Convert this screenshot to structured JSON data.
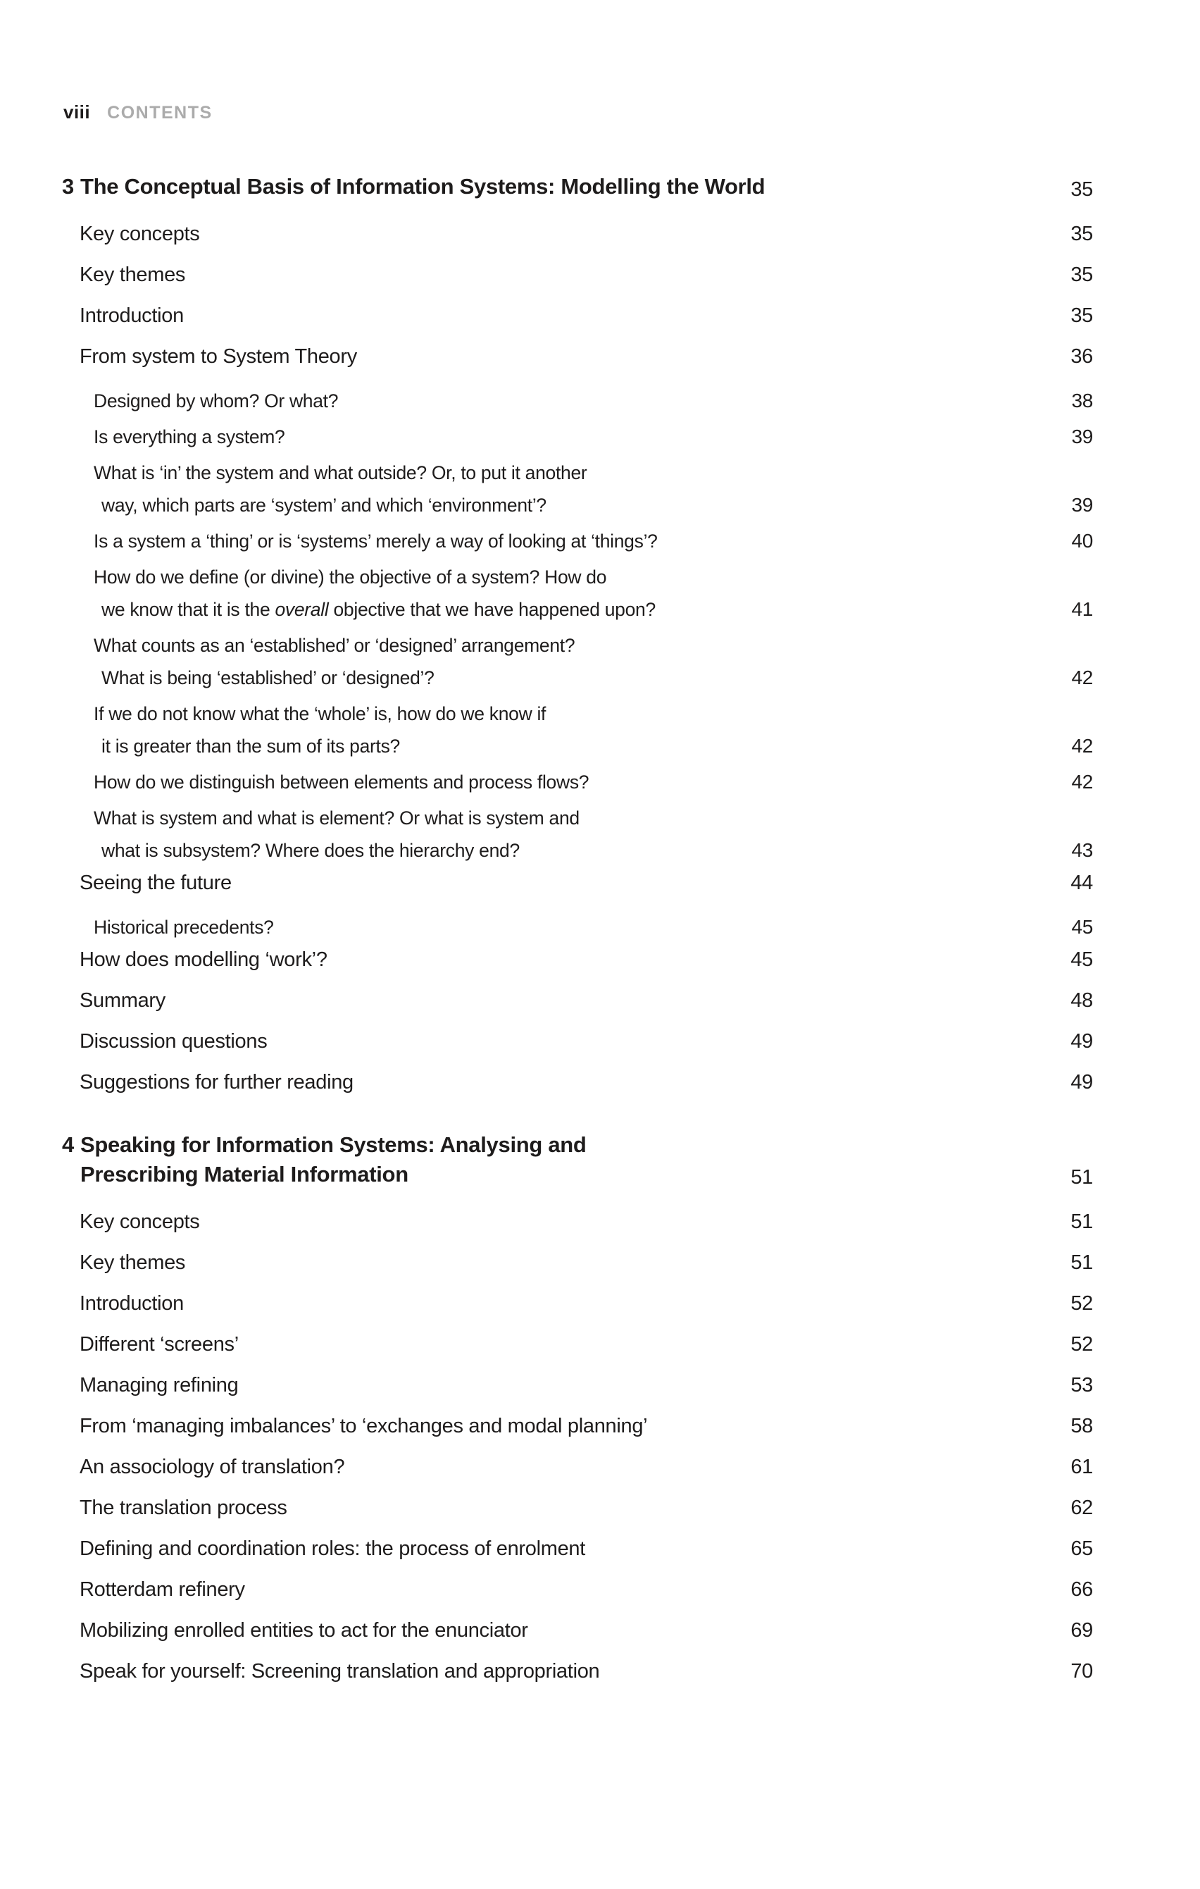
{
  "header": {
    "folio": "viii",
    "running_head": "CONTENTS"
  },
  "chapters": [
    {
      "number": "3",
      "title_lines": [
        "The Conceptual Basis of Information Systems: Modelling the World"
      ],
      "page": "35",
      "entries": [
        {
          "level": 1,
          "lines": [
            "Key concepts"
          ],
          "page": "35"
        },
        {
          "level": 1,
          "lines": [
            "Key themes"
          ],
          "page": "35"
        },
        {
          "level": 1,
          "lines": [
            "Introduction"
          ],
          "page": "35"
        },
        {
          "level": 1,
          "lines": [
            "From system to System Theory"
          ],
          "page": "36"
        },
        {
          "level": 2,
          "lines": [
            "Designed by whom? Or what?"
          ],
          "page": "38"
        },
        {
          "level": 2,
          "lines": [
            "Is everything a system?"
          ],
          "page": "39"
        },
        {
          "level": 2,
          "lines": [
            "What is ‘in’ the system and what outside? Or, to put it another",
            "way, which parts are ‘system’ and which ‘environment’?"
          ],
          "page": "39"
        },
        {
          "level": 2,
          "lines": [
            "Is a system a ‘thing’ or is ‘systems’ merely a way of looking at ‘things’?"
          ],
          "page": "40"
        },
        {
          "level": 2,
          "lines": [
            "How do we define (or divine) the objective of a system? How do",
            [
              {
                "t": "we know that it is the "
              },
              {
                "t": "overall",
                "i": true
              },
              {
                "t": " objective that we have happened upon?"
              }
            ]
          ],
          "page": "41"
        },
        {
          "level": 2,
          "lines": [
            "What counts as an ‘established’ or ‘designed’ arrangement?",
            "What is being ‘established’ or ‘designed’?"
          ],
          "page": "42"
        },
        {
          "level": 2,
          "lines": [
            "If we do not know what the ‘whole’ is, how do we know if",
            "it is greater than the sum of its parts?"
          ],
          "page": "42"
        },
        {
          "level": 2,
          "lines": [
            "How do we distinguish between elements and process flows?"
          ],
          "page": "42"
        },
        {
          "level": 2,
          "lines": [
            "What is system and what is element? Or what is system and",
            "what is subsystem? Where does the hierarchy end?"
          ],
          "page": "43"
        },
        {
          "level": 1,
          "lines": [
            "Seeing the future"
          ],
          "page": "44"
        },
        {
          "level": 2,
          "lines": [
            "Historical precedents?"
          ],
          "page": "45"
        },
        {
          "level": 1,
          "lines": [
            "How does modelling ‘work’?"
          ],
          "page": "45"
        },
        {
          "level": 1,
          "lines": [
            "Summary"
          ],
          "page": "48"
        },
        {
          "level": 1,
          "lines": [
            "Discussion questions"
          ],
          "page": "49"
        },
        {
          "level": 1,
          "lines": [
            "Suggestions for further reading"
          ],
          "page": "49"
        }
      ]
    },
    {
      "number": "4",
      "title_lines": [
        "Speaking for Information Systems: Analysing and",
        "Prescribing Material Information"
      ],
      "page": "51",
      "entries": [
        {
          "level": 1,
          "lines": [
            "Key concepts"
          ],
          "page": "51"
        },
        {
          "level": 1,
          "lines": [
            "Key themes"
          ],
          "page": "51"
        },
        {
          "level": 1,
          "lines": [
            "Introduction"
          ],
          "page": "52"
        },
        {
          "level": 1,
          "lines": [
            "Different ‘screens’"
          ],
          "page": "52"
        },
        {
          "level": 1,
          "lines": [
            "Managing refining"
          ],
          "page": "53"
        },
        {
          "level": 1,
          "lines": [
            "From ‘managing imbalances’ to ‘exchanges and modal planning’"
          ],
          "page": "58"
        },
        {
          "level": 1,
          "lines": [
            "An associology of translation?"
          ],
          "page": "61"
        },
        {
          "level": 1,
          "lines": [
            "The translation process"
          ],
          "page": "62"
        },
        {
          "level": 1,
          "lines": [
            "Defining and coordination roles: the process of enrolment"
          ],
          "page": "65"
        },
        {
          "level": 1,
          "lines": [
            "Rotterdam refinery"
          ],
          "page": "66"
        },
        {
          "level": 1,
          "lines": [
            "Mobilizing enrolled entities to act for the enunciator"
          ],
          "page": "69"
        },
        {
          "level": 1,
          "lines": [
            "Speak for yourself: Screening translation and appropriation"
          ],
          "page": "70"
        }
      ]
    }
  ]
}
